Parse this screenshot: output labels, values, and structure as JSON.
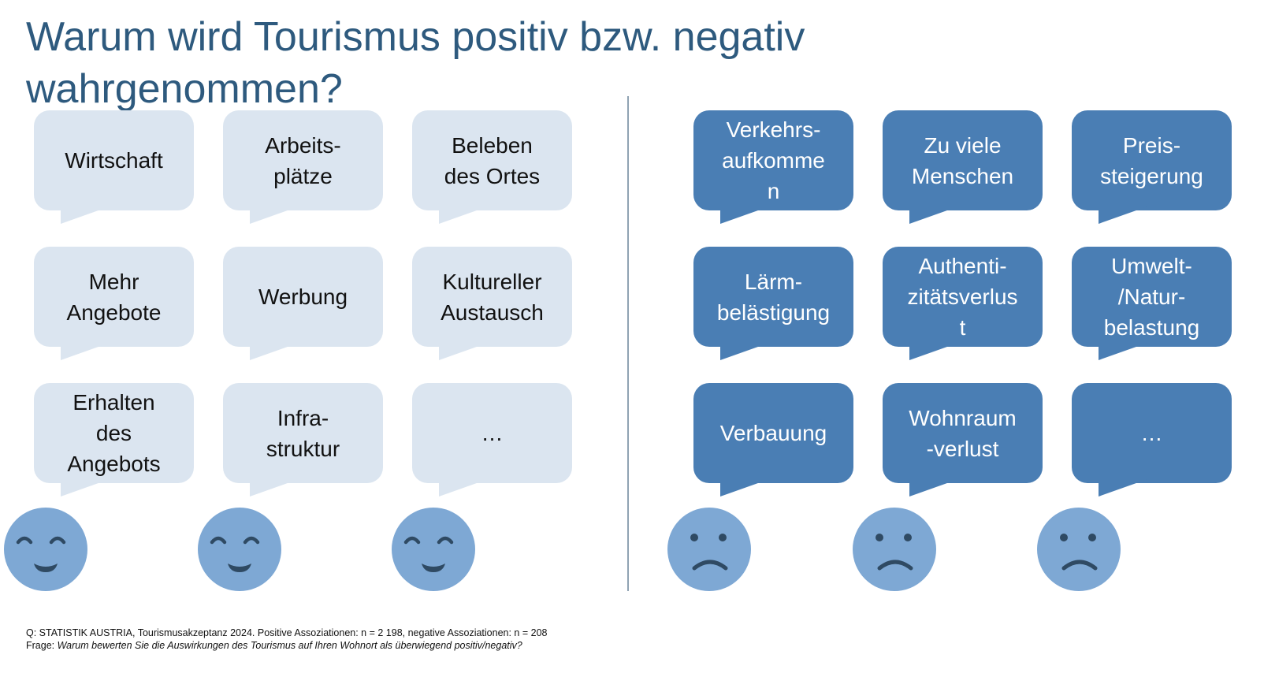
{
  "title": "Warum wird Tourismus positiv bzw. negativ\nwahrgenommen?",
  "positive": {
    "bubbles": [
      "Wirtschaft",
      "Arbeits-\nplätze",
      "Beleben\ndes Ortes",
      "Mehr\nAngebote",
      "Werbung",
      "Kultureller\nAustausch",
      "Erhalten\ndes\nAngebots",
      "Infra-\nstruktur",
      "…"
    ],
    "face_icon": "smiling-face-icon",
    "colors": {
      "bubble": "#dbe5f0",
      "text": "#111111",
      "face": "#7ea8d4"
    }
  },
  "negative": {
    "bubbles": [
      "Verkehrs-\naufkomme\nn",
      "Zu viele\nMenschen",
      "Preis-\nsteigerung",
      "Lärm-\nbelästigung",
      "Authenti-\nzitätsverlus\nt",
      "Umwelt-\n/Natur-\nbelastung",
      "Verbauung",
      "Wohnraum\n-verlust",
      "…"
    ],
    "face_icon": "frowning-face-icon",
    "colors": {
      "bubble": "#4a7eb4",
      "text": "#ffffff",
      "face": "#7ea8d4"
    }
  },
  "footer": {
    "source": "Q: STATISTIK AUSTRIA, Tourismusakzeptanz 2024. Positive Assoziationen: n = 2 198, negative Assoziationen: n = 208",
    "question_label": "Frage: ",
    "question_text": "Warum bewerten Sie die Auswirkungen des Tourismus auf Ihren Wohnort als überwiegend positiv/negativ?"
  }
}
